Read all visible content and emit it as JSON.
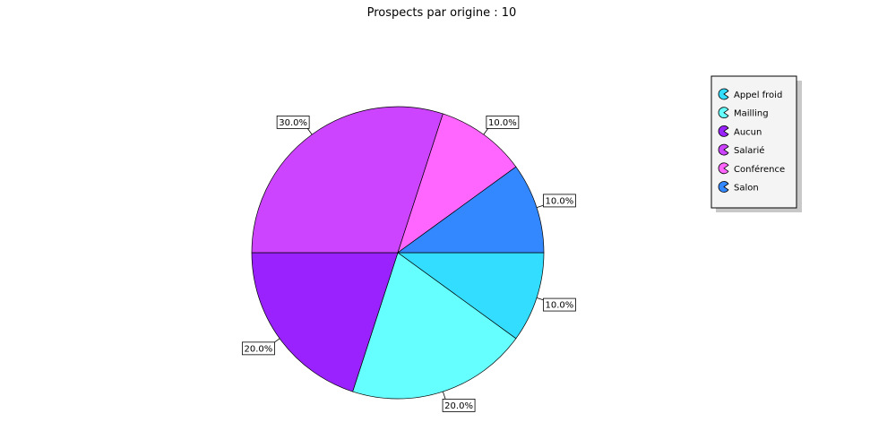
{
  "chart_data": {
    "type": "pie",
    "title": "Prospects par origine : 10",
    "slices": [
      {
        "name": "Appel froid",
        "value": 10.0,
        "label": "10.0%",
        "color": "#33ddff"
      },
      {
        "name": "Mailling",
        "value": 20.0,
        "label": "20.0%",
        "color": "#66ffff"
      },
      {
        "name": "Aucun",
        "value": 20.0,
        "label": "20.0%",
        "color": "#9922ff"
      },
      {
        "name": "Salarié",
        "value": 30.0,
        "label": "30.0%",
        "color": "#cc44ff"
      },
      {
        "name": "Conférence",
        "value": 10.0,
        "label": "10.0%",
        "color": "#ff66ff"
      },
      {
        "name": "Salon",
        "value": 10.0,
        "label": "10.0%",
        "color": "#3388ff"
      }
    ],
    "legend_position": "top-right"
  }
}
